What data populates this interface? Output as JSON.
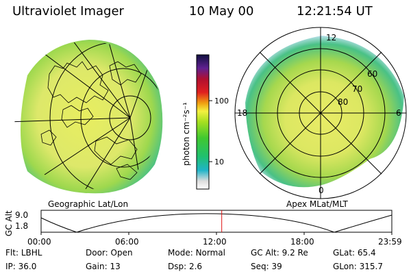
{
  "header": {
    "instrument": "Ultraviolet Imager",
    "date": "10 May 00",
    "time": "12:21:54 UT"
  },
  "colorbar": {
    "unit": "photon cm⁻²s⁻¹",
    "ticks": [
      "100",
      "10"
    ]
  },
  "left_panel": {
    "label": "Geographic Lat/Lon"
  },
  "right_panel": {
    "label": "Apex MLat/MLT",
    "mlt_labels": [
      "12",
      "18",
      "6",
      "0"
    ],
    "lat_labels": [
      "60",
      "70",
      "80"
    ]
  },
  "altitude_plot": {
    "ylabel": "GC Alt",
    "y_ticks": [
      "9.0",
      "1.8"
    ],
    "time_ticks": [
      "00:00",
      "06:00",
      "12:00",
      "18:00",
      "23:59"
    ],
    "current_time_fraction": 0.515
  },
  "footer": {
    "row1": [
      {
        "label": "Flt:",
        "value": "LBHL"
      },
      {
        "label": "Door:",
        "value": "Open"
      },
      {
        "label": "Mode:",
        "value": "Normal"
      },
      {
        "label": "GC Alt:",
        "value": "9.2 Re"
      },
      {
        "label": "GLat:",
        "value": "65.4"
      }
    ],
    "row2": [
      {
        "label": "IP:",
        "value": "36.0"
      },
      {
        "label": "Gain:",
        "value": "13"
      },
      {
        "label": "Dsp:",
        "value": "2.6"
      },
      {
        "label": "Seq:",
        "value": "39"
      },
      {
        "label": "GLon:",
        "value": "315.7"
      }
    ]
  }
}
